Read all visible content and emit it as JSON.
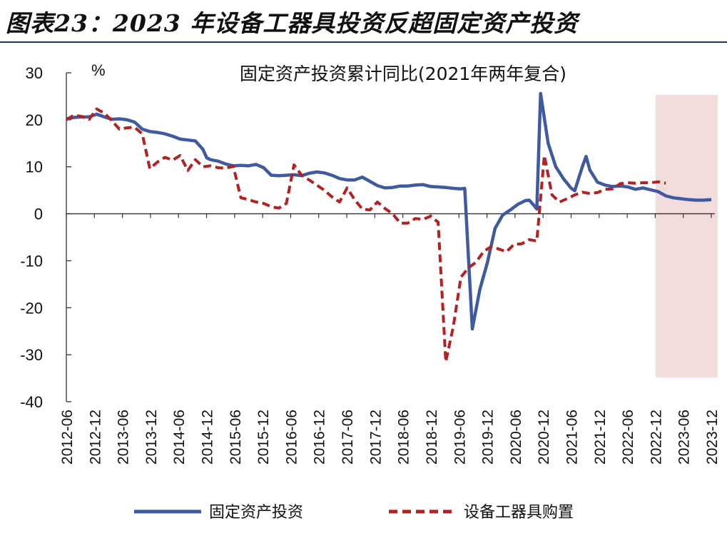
{
  "figure_title": "图表23：2023 年设备工器具投资反超固定资产投资",
  "chart_data": {
    "type": "line",
    "title": "固定资产投资累计同比(2021年两年复合)",
    "ylabel": "%",
    "ylim": [
      -40,
      30
    ],
    "yticks": [
      "30",
      "20",
      "10",
      "0",
      "-10",
      "-20",
      "-30",
      "-40"
    ],
    "x_ticks": [
      "2012-06",
      "2012-12",
      "2013-06",
      "2013-12",
      "2014-06",
      "2014-12",
      "2015-06",
      "2015-12",
      "2016-06",
      "2016-12",
      "2017-06",
      "2017-12",
      "2018-06",
      "2018-12",
      "2019-06",
      "2019-12",
      "2020-06",
      "2020-12",
      "2021-06",
      "2021-12",
      "2022-06",
      "2022-12",
      "2023-06",
      "2023-12"
    ],
    "highlight_range": [
      "2023-01",
      "2023-12"
    ],
    "series": [
      {
        "name": "固定资产投资",
        "color": "#3f5aa0",
        "style": "solid",
        "points": [
          [
            0,
            20.2
          ],
          [
            2,
            20.5
          ],
          [
            4,
            20.6
          ],
          [
            6,
            20.6
          ],
          [
            8,
            21.2
          ],
          [
            10,
            20.6
          ],
          [
            12,
            20.1
          ],
          [
            14,
            20.2
          ],
          [
            16,
            20.0
          ],
          [
            18,
            19.5
          ],
          [
            20,
            18.0
          ],
          [
            22,
            17.5
          ],
          [
            24,
            17.3
          ],
          [
            26,
            17.0
          ],
          [
            28,
            16.5
          ],
          [
            30,
            15.9
          ],
          [
            32,
            15.7
          ],
          [
            34,
            15.5
          ],
          [
            36,
            13.7
          ],
          [
            37,
            11.9
          ],
          [
            38,
            11.5
          ],
          [
            40,
            11.2
          ],
          [
            42,
            10.6
          ],
          [
            44,
            10.2
          ],
          [
            46,
            10.3
          ],
          [
            48,
            10.2
          ],
          [
            50,
            10.5
          ],
          [
            52,
            9.8
          ],
          [
            54,
            8.2
          ],
          [
            56,
            8.1
          ],
          [
            58,
            8.2
          ],
          [
            60,
            8.3
          ],
          [
            62,
            8.1
          ],
          [
            64,
            8.6
          ],
          [
            66,
            8.9
          ],
          [
            68,
            8.7
          ],
          [
            70,
            8.2
          ],
          [
            72,
            7.5
          ],
          [
            74,
            7.2
          ],
          [
            76,
            7.2
          ],
          [
            78,
            7.8
          ],
          [
            80,
            6.9
          ],
          [
            82,
            6.0
          ],
          [
            84,
            5.5
          ],
          [
            86,
            5.6
          ],
          [
            88,
            5.9
          ],
          [
            90,
            5.9
          ],
          [
            92,
            6.1
          ],
          [
            94,
            6.2
          ],
          [
            96,
            5.8
          ],
          [
            98,
            5.7
          ],
          [
            100,
            5.6
          ],
          [
            102,
            5.4
          ],
          [
            104,
            5.3
          ],
          [
            105,
            5.4
          ],
          [
            107,
            -24.5
          ],
          [
            109,
            -16.1
          ],
          [
            111,
            -10.3
          ],
          [
            113,
            -3.1
          ],
          [
            115,
            -0.3
          ],
          [
            117,
            0.8
          ],
          [
            119,
            2.0
          ],
          [
            121,
            2.8
          ],
          [
            122,
            2.9
          ],
          [
            123,
            2.0
          ],
          [
            124,
            1.0
          ],
          [
            125,
            25.6
          ],
          [
            127,
            15.0
          ],
          [
            129,
            10.0
          ],
          [
            131,
            7.5
          ],
          [
            133,
            5.5
          ],
          [
            134,
            4.9
          ],
          [
            136,
            10.0
          ],
          [
            137,
            12.2
          ],
          [
            138,
            9.3
          ],
          [
            140,
            6.7
          ],
          [
            142,
            6.1
          ],
          [
            144,
            5.8
          ],
          [
            146,
            5.9
          ],
          [
            148,
            5.7
          ],
          [
            150,
            5.2
          ],
          [
            152,
            5.5
          ],
          [
            154,
            5.1
          ],
          [
            156,
            4.7
          ],
          [
            158,
            3.8
          ],
          [
            160,
            3.4
          ],
          [
            162,
            3.2
          ],
          [
            164,
            3.0
          ],
          [
            166,
            2.9
          ],
          [
            168,
            2.9
          ],
          [
            170,
            3.0
          ]
        ]
      },
      {
        "name": "设备工器具购置",
        "color": "#b22222",
        "style": "dashed",
        "points": [
          [
            0,
            20.0
          ],
          [
            2,
            21.0
          ],
          [
            4,
            20.7
          ],
          [
            6,
            20.1
          ],
          [
            8,
            22.3
          ],
          [
            10,
            21.4
          ],
          [
            12,
            19.8
          ],
          [
            14,
            18.0
          ],
          [
            16,
            18.3
          ],
          [
            18,
            18.4
          ],
          [
            20,
            17.0
          ],
          [
            22,
            9.6
          ],
          [
            24,
            11.0
          ],
          [
            26,
            12.0
          ],
          [
            28,
            11.4
          ],
          [
            30,
            12.4
          ],
          [
            32,
            9.2
          ],
          [
            34,
            11.5
          ],
          [
            36,
            10.0
          ],
          [
            38,
            10.2
          ],
          [
            40,
            9.8
          ],
          [
            42,
            9.7
          ],
          [
            44,
            10.1
          ],
          [
            46,
            3.4
          ],
          [
            48,
            3.0
          ],
          [
            50,
            2.5
          ],
          [
            52,
            2.2
          ],
          [
            54,
            1.5
          ],
          [
            56,
            1.2
          ],
          [
            58,
            2.2
          ],
          [
            60,
            10.4
          ],
          [
            62,
            8.2
          ],
          [
            64,
            7.2
          ],
          [
            66,
            6.1
          ],
          [
            68,
            5.0
          ],
          [
            70,
            3.6
          ],
          [
            72,
            2.5
          ],
          [
            74,
            5.5
          ],
          [
            76,
            3.0
          ],
          [
            78,
            1.0
          ],
          [
            80,
            0.8
          ],
          [
            82,
            2.5
          ],
          [
            84,
            1.1
          ],
          [
            86,
            0.0
          ],
          [
            88,
            -2.0
          ],
          [
            90,
            -2.0
          ],
          [
            92,
            -1.0
          ],
          [
            94,
            -1.2
          ],
          [
            96,
            -0.5
          ],
          [
            98,
            -1.8
          ],
          [
            100,
            -31.5
          ],
          [
            102,
            -24.0
          ],
          [
            104,
            -13.5
          ],
          [
            106,
            -11.5
          ],
          [
            108,
            -10.3
          ],
          [
            110,
            -8.0
          ],
          [
            112,
            -7.0
          ],
          [
            114,
            -7.5
          ],
          [
            116,
            -8.1
          ],
          [
            118,
            -6.5
          ],
          [
            120,
            -6.4
          ],
          [
            122,
            -5.5
          ],
          [
            124,
            -5.8
          ],
          [
            126,
            12.4
          ],
          [
            128,
            4.0
          ],
          [
            130,
            2.5
          ],
          [
            132,
            3.2
          ],
          [
            134,
            4.0
          ],
          [
            136,
            4.6
          ],
          [
            138,
            4.3
          ],
          [
            140,
            4.5
          ],
          [
            142,
            5.2
          ],
          [
            144,
            5.3
          ],
          [
            146,
            6.4
          ],
          [
            148,
            6.6
          ],
          [
            150,
            6.5
          ],
          [
            152,
            6.6
          ],
          [
            154,
            6.6
          ],
          [
            156,
            6.8
          ],
          [
            158,
            6.5
          ]
        ]
      }
    ],
    "legend": [
      {
        "label": "固定资产投资",
        "style": "solid"
      },
      {
        "label": "设备工器具购置",
        "style": "dashed"
      }
    ],
    "legend_position": "bottom",
    "grid": false
  }
}
